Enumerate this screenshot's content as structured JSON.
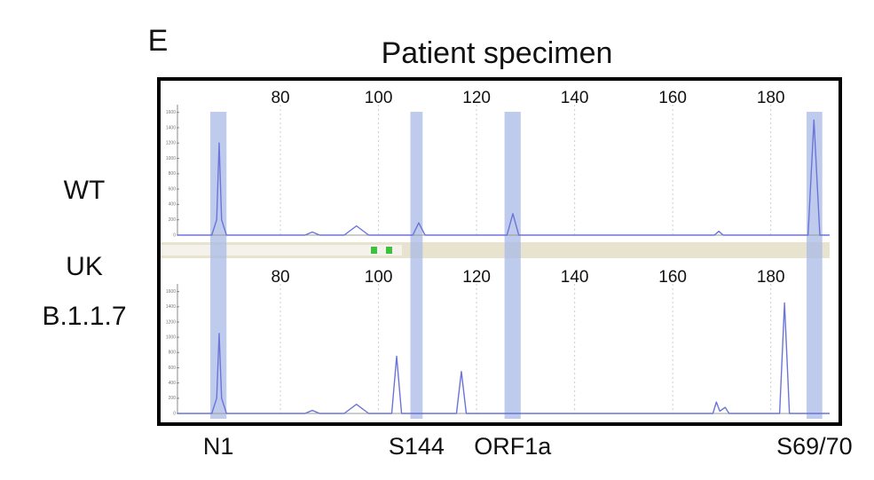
{
  "panel_label": "E",
  "title": "Patient specimen",
  "markers": [
    {
      "label": "N1",
      "xrange": [
        65.7,
        69
      ]
    },
    {
      "label": "S144",
      "xrange": [
        106.5,
        109
      ]
    },
    {
      "label": "ORF1a",
      "xrange": [
        125.7,
        129
      ]
    },
    {
      "label": "S69/70",
      "xrange": [
        187.3,
        190.5
      ]
    }
  ],
  "marker_color": "#a9b9e6",
  "chart_data": [
    {
      "type": "line",
      "row_label_lines": [
        "WT"
      ],
      "x": [
        59,
        66,
        67,
        67.5,
        68,
        69,
        85,
        86.5,
        88,
        93,
        95.5,
        98,
        107,
        108.2,
        109.5,
        126.2,
        127.4,
        128.6,
        168.5,
        169.4,
        170.3,
        187.6,
        188.8,
        190,
        192
      ],
      "values": [
        0,
        0,
        200,
        1200,
        200,
        0,
        0,
        40,
        0,
        0,
        120,
        0,
        0,
        160,
        0,
        0,
        280,
        0,
        0,
        50,
        0,
        0,
        1500,
        0,
        0
      ],
      "color": "#6b74d8",
      "xlim": [
        59,
        192
      ],
      "xticks": [
        80,
        100,
        120,
        140,
        160,
        180
      ],
      "ylim": [
        0,
        1700
      ],
      "yticks": [
        0,
        200,
        400,
        600,
        800,
        1000,
        1200,
        1400,
        1600
      ],
      "grid": true
    },
    {
      "type": "line",
      "row_label_lines": [
        "UK",
        "B.1.1.7"
      ],
      "x": [
        59,
        66,
        67,
        67.5,
        68,
        69,
        85,
        86.5,
        88,
        93,
        95.5,
        98,
        102.7,
        103.7,
        104.7,
        115.9,
        116.9,
        117.9,
        168.2,
        168.9,
        169.6,
        170.7,
        171.5,
        181.8,
        182.8,
        183.8,
        192
      ],
      "values": [
        0,
        0,
        200,
        1050,
        200,
        0,
        0,
        40,
        0,
        0,
        120,
        0,
        0,
        750,
        0,
        0,
        550,
        0,
        0,
        150,
        30,
        80,
        0,
        0,
        1450,
        0,
        0
      ],
      "color": "#6b74d8",
      "xlim": [
        59,
        192
      ],
      "xticks": [
        80,
        100,
        120,
        140,
        160,
        180
      ],
      "ylim": [
        0,
        1700
      ],
      "yticks": [
        0,
        200,
        400,
        600,
        800,
        1000,
        1200,
        1400,
        1600
      ],
      "grid": true
    }
  ]
}
